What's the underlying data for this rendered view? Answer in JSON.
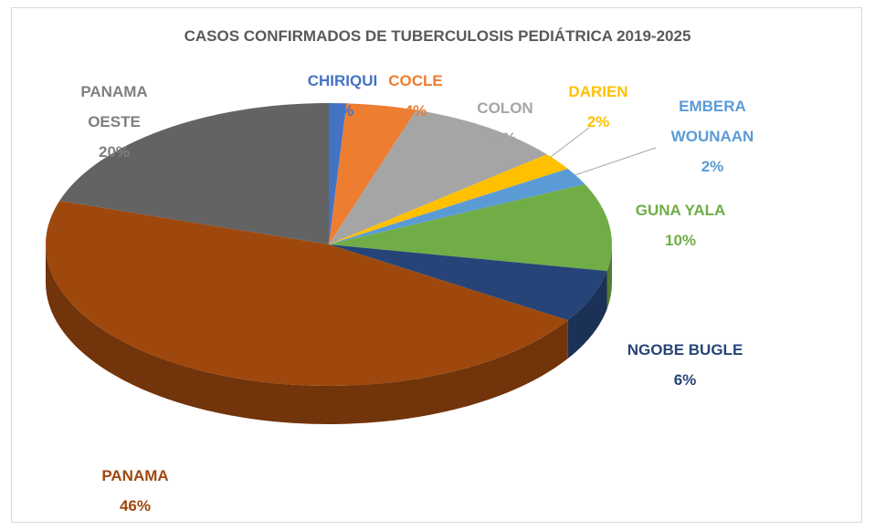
{
  "chart_data": {
    "type": "pie3d",
    "title": "CASOS CONFIRMADOS DE TUBERCULOSIS PEDIÁTRICA 2019-2025",
    "categories": [
      "CHIRIQUI",
      "COCLE",
      "COLON",
      "DARIEN",
      "EMBERA WOUNAAN",
      "GUNA YALA",
      "NGOBE BUGLE",
      "PANAMA",
      "PANAMA OESTE"
    ],
    "values": [
      1,
      4,
      9,
      2,
      2,
      10,
      6,
      46,
      20
    ],
    "value_labels": [
      "1%",
      "4%",
      "9%",
      "2%",
      "2%",
      "10%",
      "6%",
      "46%",
      "20%"
    ],
    "colors": [
      "#4472c4",
      "#ed7d31",
      "#a5a5a5",
      "#ffc000",
      "#5b9bd5",
      "#70ad47",
      "#264478",
      "#9e480e",
      "#636363"
    ]
  }
}
